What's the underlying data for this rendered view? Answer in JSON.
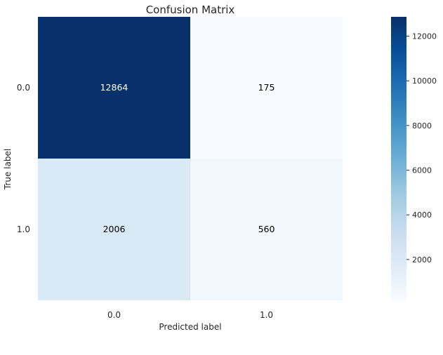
{
  "chart_data": {
    "type": "heatmap",
    "title": "Confusion Matrix",
    "xlabel": "Predicted label",
    "ylabel": "True label",
    "x_categories": [
      "0.0",
      "1.0"
    ],
    "y_categories": [
      "0.0",
      "1.0"
    ],
    "values": [
      [
        12864,
        175
      ],
      [
        2006,
        560
      ]
    ],
    "colormap": "Blues",
    "color_low": "#f7fbff",
    "color_high": "#08306b",
    "vmin": 175,
    "vmax": 12864,
    "colorbar_ticks": [
      2000,
      4000,
      6000,
      8000,
      10000,
      12000
    ],
    "colorbar_tick_labels": [
      "2000",
      "4000",
      "6000",
      "8000",
      "10000",
      "12000"
    ],
    "text_color_dark": "#ffffff",
    "text_color_light": "#000000",
    "grid": false
  }
}
